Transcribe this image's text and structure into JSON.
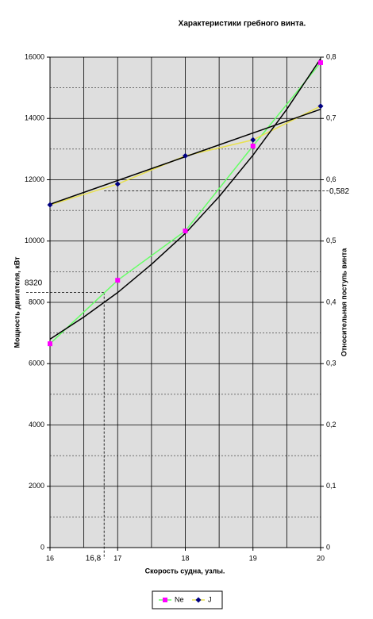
{
  "chart_data": {
    "type": "line",
    "title": "Характеристики гребного винта.",
    "x_label": "Скорость судна, узлы.",
    "y_label": "Мощность двигателя, кВт",
    "y2_label": "Относительная поступь винта",
    "x": [
      16,
      17,
      18,
      19,
      20
    ],
    "series": [
      {
        "name": "Ne",
        "color": "#ff00ff",
        "line_color": "#66ff66",
        "marker": "square",
        "values": [
          6650,
          8720,
          10330,
          13100,
          15820
        ]
      },
      {
        "name": "J",
        "color": "#000080",
        "line_color": "#e8e050",
        "marker": "diamond",
        "axis": "y2",
        "values": [
          0.559,
          0.593,
          0.639,
          0.665,
          0.72
        ]
      }
    ],
    "trendlines": [
      {
        "color": "#000000",
        "x": [
          16,
          16.5,
          17,
          17.5,
          18,
          18.5,
          19,
          19.5,
          20
        ],
        "values": [
          6800,
          7520,
          8320,
          9240,
          10250,
          11450,
          12800,
          14300,
          15950
        ]
      },
      {
        "color": "#000000",
        "axis": "y2",
        "x": [
          16,
          20
        ],
        "values": [
          0.56,
          0.715
        ]
      }
    ],
    "annotations": [
      {
        "label": "8320",
        "y": 8320
      },
      {
        "label": "16,8",
        "x": 16.8
      },
      {
        "label": "0,582",
        "y2": 0.582
      }
    ],
    "xlim": [
      16,
      20
    ],
    "xticks": [
      16,
      17,
      18,
      19,
      20
    ],
    "x_gridlines": [
      16.5,
      17,
      17.5,
      18,
      18.5,
      19,
      19.5
    ],
    "ylim": [
      0,
      16000
    ],
    "yticks": [
      0,
      2000,
      4000,
      6000,
      8000,
      10000,
      12000,
      14000,
      16000
    ],
    "y_minor_gridlines": [
      1000,
      3000,
      5000,
      7000,
      9000,
      11000,
      13000,
      15000
    ],
    "y2lim": [
      0,
      0.8
    ],
    "y2ticks": [
      {
        "value": 0,
        "label": "0"
      },
      {
        "value": 0.1,
        "label": "0,1"
      },
      {
        "value": 0.2,
        "label": "0,2"
      },
      {
        "value": 0.3,
        "label": "0,3"
      },
      {
        "value": 0.4,
        "label": "0,4"
      },
      {
        "value": 0.5,
        "label": "0,5"
      },
      {
        "value": 0.6,
        "label": "0,6"
      },
      {
        "value": 0.7,
        "label": "0,7"
      },
      {
        "value": 0.8,
        "label": "0,8"
      }
    ],
    "grid": true,
    "legend": "bottom"
  }
}
